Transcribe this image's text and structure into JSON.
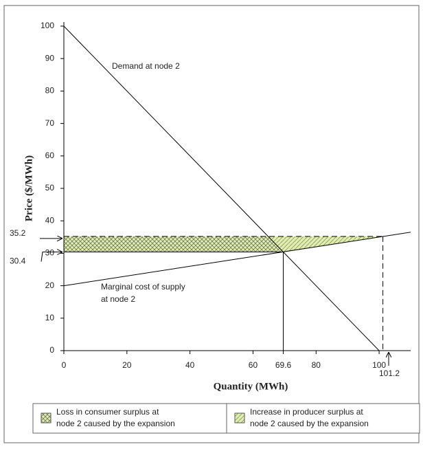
{
  "chart_data": {
    "type": "line",
    "xlabel": "Quantity (MWh)",
    "ylabel": "Price ($/MWh)",
    "xlim": [
      0,
      110
    ],
    "ylim": [
      0,
      100
    ],
    "xticks": [
      0,
      20,
      40,
      60,
      69.6,
      80,
      100
    ],
    "yticks": [
      0,
      10,
      20,
      30,
      40,
      50,
      60,
      70,
      80,
      90,
      100
    ],
    "series": [
      {
        "label": [
          "Demand at node 2"
        ],
        "color": "#000000",
        "x": [
          0,
          100
        ],
        "values": [
          100,
          0
        ]
      },
      {
        "label": [
          "Marginal cost of supply",
          "at node 2"
        ],
        "color": "#000000",
        "x": [
          0,
          110
        ],
        "values": [
          20,
          36.5
        ]
      }
    ],
    "price_before": 30.4,
    "price_after": 35.2,
    "quantity_before": 69.6,
    "quantity_after": 101.2,
    "areas": [
      {
        "label": [
          "Loss in consumer surplus at",
          "node 2 caused by the expansion"
        ],
        "pattern": "cross",
        "color": "#e3ecb8",
        "hatch": "#6a7a50"
      },
      {
        "label": [
          "Increase in producer surplus at",
          "node 2 caused by the expansion"
        ],
        "pattern": "diag",
        "color": "#e3ecb8",
        "hatch": "#7f9a3a"
      }
    ]
  }
}
